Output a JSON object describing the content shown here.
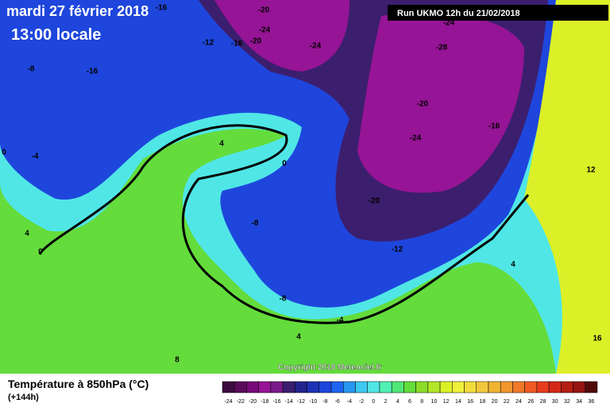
{
  "header": {
    "date": "mardi 27 février 2018",
    "time": "13:00 locale",
    "run": "Run UKMO 12h du 21/02/2018"
  },
  "copyright": "Copyright 2018 Meteociel.fr",
  "footer": {
    "title": "Température à 850hPa (°C)",
    "lead": "(+144h)"
  },
  "legend": {
    "ticks": [
      -24,
      -22,
      -20,
      -18,
      -16,
      -14,
      -12,
      -10,
      -8,
      -6,
      -4,
      -2,
      0,
      2,
      4,
      6,
      8,
      10,
      12,
      14,
      16,
      18,
      20,
      22,
      24,
      26,
      28,
      30,
      32,
      34,
      36
    ],
    "colors": [
      "#3c0a3c",
      "#5a0a5a",
      "#780a78",
      "#961496",
      "#7a1a8a",
      "#3c1e6e",
      "#23238c",
      "#1e32b4",
      "#1e46dc",
      "#1e64f0",
      "#2896f0",
      "#3cc8f0",
      "#50e6e6",
      "#50f0b4",
      "#50e678",
      "#64dc3c",
      "#8cdc28",
      "#b4e628",
      "#dcf028",
      "#f0f03c",
      "#f0dc3c",
      "#f0c83c",
      "#f0b432",
      "#f0962d",
      "#f07828",
      "#f05a23",
      "#e63c1e",
      "#d22819",
      "#b41e14",
      "#961414",
      "#500a0a"
    ]
  },
  "contour_labels": [
    -16,
    -20,
    -24,
    -20,
    -16,
    -12,
    -24,
    -24,
    -28,
    -20,
    -16,
    -24,
    -20,
    -12,
    -8,
    -16,
    4,
    0,
    -8,
    -4,
    0,
    4,
    0,
    12,
    4,
    -8,
    -4,
    4,
    8,
    16
  ]
}
